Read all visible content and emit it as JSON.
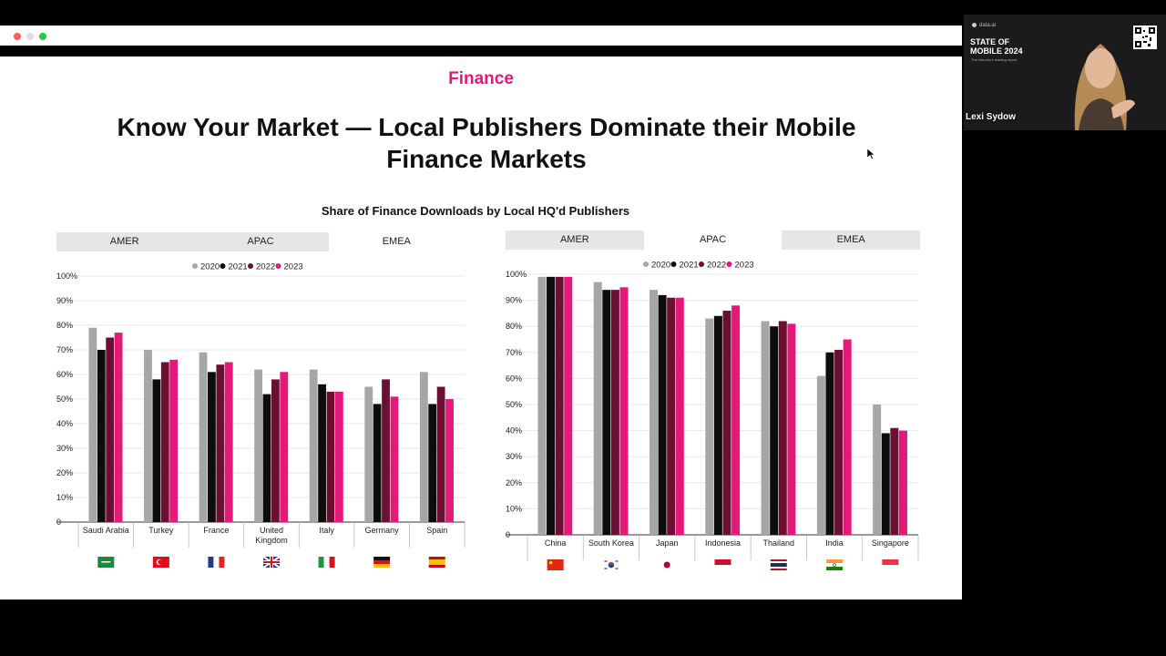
{
  "window": {
    "dots": [
      "#ff5f57",
      "#e0e0e0",
      "#28c840"
    ]
  },
  "slide": {
    "section": "Finance",
    "title": "Know Your Market — Local Publishers Dominate their Mobile Finance Markets",
    "subtitle": "Share of Finance Downloads by Local HQ'd Publishers"
  },
  "video": {
    "brand": "data.ai",
    "heading": "STATE OF MOBILE 2024",
    "tagline": "The industry's leading report",
    "speaker": "Lexi Sydow"
  },
  "colors": {
    "y2020": "#a6a6a6",
    "y2021": "#0d0d0d",
    "y2022": "#6d0f33",
    "y2023": "#e5197a",
    "brand": "#e5197a"
  },
  "charts": [
    {
      "tabs": [
        "AMER",
        "APAC",
        "EMEA"
      ],
      "active_tab": "EMEA"
    },
    {
      "tabs": [
        "AMER",
        "APAC",
        "EMEA"
      ],
      "active_tab": "APAC"
    }
  ],
  "chart_data": [
    {
      "type": "bar",
      "categories": [
        "Saudi Arabia",
        "Turkey",
        "France",
        "United Kingdom",
        "Italy",
        "Germany",
        "Spain"
      ],
      "flags": [
        "flag-saudi-arabia",
        "flag-turkey",
        "flag-france",
        "flag-united-kingdom",
        "flag-italy",
        "flag-germany",
        "flag-spain"
      ],
      "series": [
        {
          "name": "2020",
          "values": [
            79,
            70,
            69,
            62,
            62,
            55,
            61
          ]
        },
        {
          "name": "2021",
          "values": [
            70,
            58,
            61,
            52,
            56,
            48,
            48
          ]
        },
        {
          "name": "2022",
          "values": [
            75,
            65,
            64,
            58,
            53,
            58,
            55
          ]
        },
        {
          "name": "2023",
          "values": [
            77,
            66,
            65,
            61,
            53,
            51,
            50
          ]
        }
      ],
      "ylim": [
        0,
        100
      ],
      "yticks": [
        "0",
        "10%",
        "20%",
        "30%",
        "40%",
        "50%",
        "60%",
        "70%",
        "80%",
        "90%",
        "100%"
      ],
      "legend": "top-center",
      "grid": true
    },
    {
      "type": "bar",
      "categories": [
        "China",
        "South Korea",
        "Japan",
        "Indonesia",
        "Thailand",
        "India",
        "Singapore"
      ],
      "flags": [
        "flag-china",
        "flag-south-korea",
        "flag-japan",
        "flag-indonesia",
        "flag-thailand",
        "flag-india",
        "flag-singapore"
      ],
      "series": [
        {
          "name": "2020",
          "values": [
            99,
            97,
            94,
            83,
            82,
            61,
            50
          ]
        },
        {
          "name": "2021",
          "values": [
            99,
            94,
            92,
            84,
            80,
            70,
            39
          ]
        },
        {
          "name": "2022",
          "values": [
            99,
            94,
            91,
            86,
            82,
            71,
            41
          ]
        },
        {
          "name": "2023",
          "values": [
            99,
            95,
            91,
            88,
            81,
            75,
            40
          ]
        }
      ],
      "ylim": [
        0,
        100
      ],
      "yticks": [
        "0",
        "10%",
        "20%",
        "30%",
        "40%",
        "50%",
        "60%",
        "70%",
        "80%",
        "90%",
        "100%"
      ],
      "legend": "top-center",
      "grid": true
    }
  ]
}
